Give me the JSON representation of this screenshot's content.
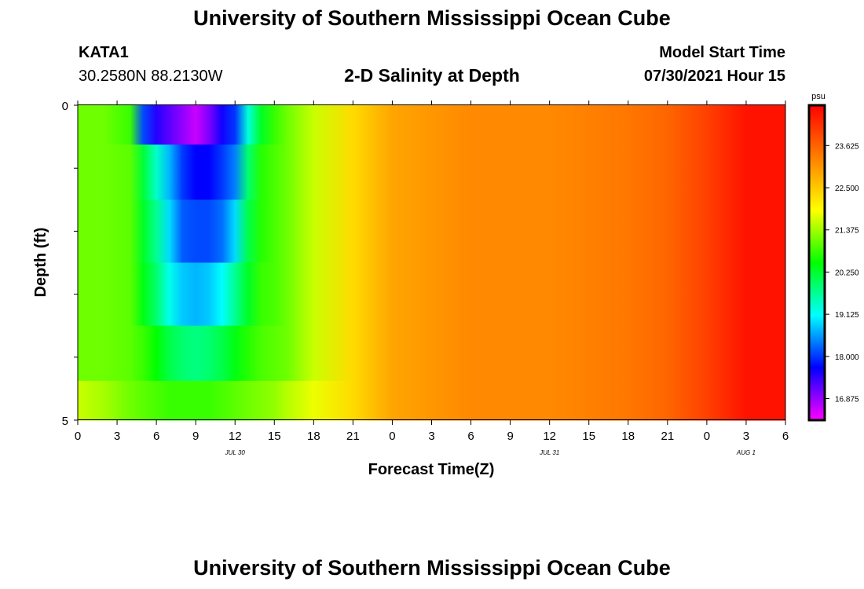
{
  "header": {
    "top_title": "University of Southern Mississippi Ocean Cube",
    "bottom_title": "University of Southern Mississippi Ocean Cube",
    "station": "KATA1",
    "coords": "30.2580N  88.2130W",
    "plot_title": "2-D Salinity at Depth",
    "model_start_label": "Model Start Time",
    "model_start_value": "07/30/2021 Hour 15"
  },
  "chart_data": {
    "type": "heatmap",
    "title": "2-D Salinity at Depth",
    "xlabel": "Forecast Time(Z)",
    "ylabel": "Depth (ft)",
    "x_tick_labels": [
      "0",
      "3",
      "6",
      "9",
      "12",
      "15",
      "18",
      "21",
      "0",
      "3",
      "6",
      "9",
      "12",
      "15",
      "18",
      "21",
      "0",
      "3",
      "6"
    ],
    "date_labels": [
      {
        "text": "JUL  30",
        "at_tick": 4
      },
      {
        "text": "JUL  31",
        "at_tick": 12
      },
      {
        "text": "AUG  1",
        "at_tick": 17
      }
    ],
    "x_range_hours": [
      0,
      54
    ],
    "y_range": [
      0,
      5
    ],
    "y_tick_labels": [
      "0",
      "5"
    ],
    "depth_layers": [
      0.25,
      1.0,
      2.0,
      3.0,
      4.0,
      4.75
    ],
    "colorbar": {
      "unit": "psu",
      "tick_labels": [
        "23.625",
        "22.500",
        "21.375",
        "20.250",
        "19.125",
        "18.000",
        "16.875"
      ],
      "min": 16.3,
      "max": 24.7,
      "colors": [
        "#ff00ff",
        "#8000ff",
        "#0000ff",
        "#0080ff",
        "#00ffff",
        "#00ff80",
        "#00ff00",
        "#80ff00",
        "#ffff00",
        "#ffc000",
        "#ff8000",
        "#ff4000",
        "#ff0000"
      ]
    },
    "hours": [
      0,
      2,
      4,
      5,
      6,
      7,
      8,
      9,
      10,
      11,
      12,
      13,
      14,
      15,
      16,
      18,
      21,
      24,
      30,
      36,
      42,
      45,
      48,
      51,
      54
    ],
    "values": [
      [
        21.1,
        21.1,
        20.8,
        18.1,
        17.5,
        17.2,
        16.9,
        16.6,
        17.0,
        17.6,
        18.0,
        19.3,
        20.3,
        20.8,
        21.1,
        21.6,
        22.3,
        22.9,
        23.2,
        23.2,
        23.4,
        23.6,
        24.0,
        24.5,
        24.5
      ],
      [
        21.1,
        21.1,
        21.0,
        20.2,
        19.4,
        18.7,
        18.0,
        17.7,
        17.7,
        18.0,
        18.4,
        19.9,
        20.7,
        20.9,
        21.1,
        21.6,
        22.3,
        22.9,
        23.2,
        23.2,
        23.4,
        23.6,
        24.0,
        24.5,
        24.5
      ],
      [
        21.1,
        21.1,
        21.0,
        20.3,
        19.7,
        18.9,
        18.2,
        18.1,
        18.1,
        18.3,
        18.9,
        20.1,
        20.7,
        20.9,
        21.1,
        21.6,
        22.3,
        22.9,
        23.2,
        23.2,
        23.4,
        23.6,
        24.0,
        24.5,
        24.5
      ],
      [
        21.1,
        21.1,
        21.0,
        20.4,
        19.9,
        19.2,
        18.8,
        18.7,
        18.8,
        19.1,
        19.7,
        20.3,
        20.8,
        20.9,
        21.1,
        21.6,
        22.3,
        22.9,
        23.2,
        23.2,
        23.4,
        23.6,
        24.0,
        24.5,
        24.5
      ],
      [
        21.1,
        21.1,
        21.0,
        20.8,
        20.5,
        20.1,
        19.9,
        19.8,
        19.9,
        20.1,
        20.4,
        20.7,
        20.9,
        21.0,
        21.1,
        21.6,
        22.3,
        22.9,
        23.2,
        23.2,
        23.4,
        23.6,
        24.0,
        24.5,
        24.5
      ],
      [
        21.6,
        21.4,
        21.1,
        21.0,
        20.9,
        20.8,
        20.8,
        20.8,
        20.8,
        20.9,
        21.0,
        21.1,
        21.2,
        21.3,
        21.5,
        21.8,
        22.3,
        22.9,
        23.2,
        23.2,
        23.4,
        23.6,
        24.0,
        24.5,
        24.5
      ]
    ]
  }
}
